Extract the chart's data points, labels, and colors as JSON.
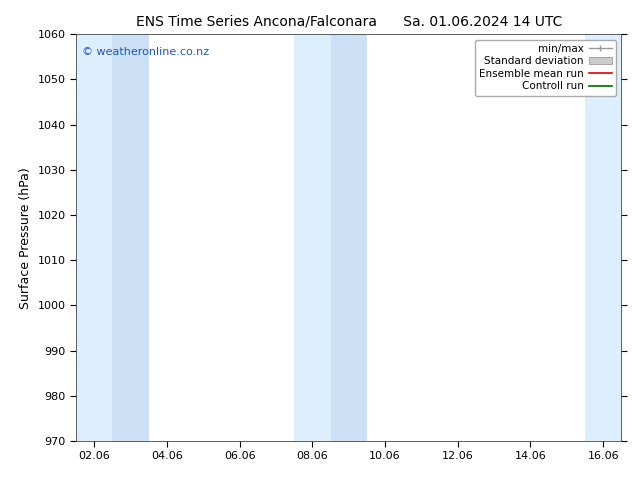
{
  "title_left": "ENS Time Series Ancona/Falconara",
  "title_right": "Sa. 01.06.2024 14 UTC",
  "ylabel": "Surface Pressure (hPa)",
  "ylim": [
    970,
    1060
  ],
  "yticks": [
    970,
    980,
    990,
    1000,
    1010,
    1020,
    1030,
    1040,
    1050,
    1060
  ],
  "xlim_start": -0.5,
  "xlim_end": 14.5,
  "xtick_labels": [
    "02.06",
    "04.06",
    "06.06",
    "08.06",
    "10.06",
    "12.06",
    "14.06",
    "16.06"
  ],
  "xtick_positions": [
    0,
    2,
    4,
    6,
    8,
    10,
    12,
    14
  ],
  "shaded_bands": [
    {
      "xmin": -0.5,
      "xmax": 0.5
    },
    {
      "xmin": 0.5,
      "xmax": 1.5
    },
    {
      "xmin": 5.5,
      "xmax": 6.5
    },
    {
      "xmin": 6.5,
      "xmax": 7.5
    },
    {
      "xmin": 13.5,
      "xmax": 14.5
    }
  ],
  "band_colors": [
    "#ddeeff",
    "#cce0f5",
    "#ddeeff",
    "#cce0f5",
    "#ddeeff"
  ],
  "background_color": "#ffffff",
  "plot_bg_color": "#ffffff",
  "watermark": "© weatheronline.co.nz",
  "watermark_color": "#2255bb",
  "title_fontsize": 10,
  "axis_label_fontsize": 9,
  "tick_fontsize": 8,
  "legend_fontsize": 7.5,
  "figsize": [
    6.34,
    4.9
  ],
  "dpi": 100
}
